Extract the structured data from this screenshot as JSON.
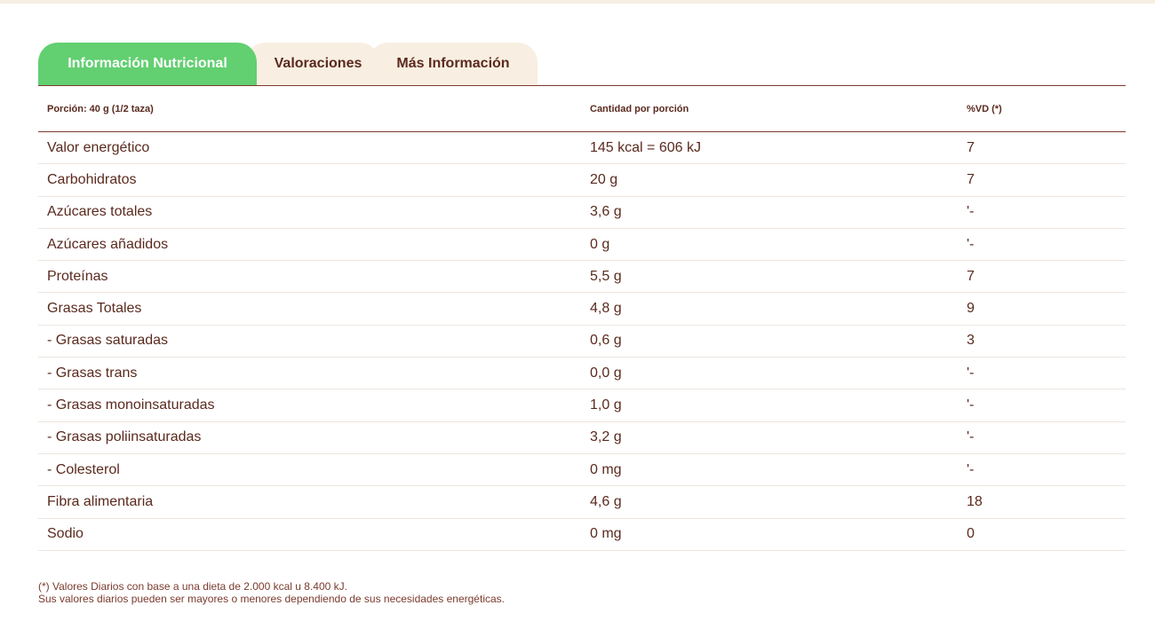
{
  "tabs": [
    {
      "label": "Información Nutricional",
      "active": true
    },
    {
      "label": "Valoraciones"
    },
    {
      "label": "Más Información"
    }
  ],
  "colors": {
    "accent": "#62cf71",
    "text": "#5a2a1e",
    "tab_bg": "#f8efe2"
  },
  "table": {
    "headers": [
      "Porción: 40 g (1/2 taza)",
      "Cantidad por porción",
      "%VD (*)"
    ],
    "rows": [
      [
        "Valor energético",
        "145 kcal = 606 kJ",
        "7"
      ],
      [
        "Carbohidratos",
        "20 g",
        "7"
      ],
      [
        "Azúcares totales",
        "3,6 g",
        "'-"
      ],
      [
        "Azúcares añadidos",
        "0 g",
        "'-"
      ],
      [
        "Proteínas",
        "5,5 g",
        "7"
      ],
      [
        "Grasas Totales",
        "4,8 g",
        "9"
      ],
      [
        "- Grasas saturadas",
        "0,6 g",
        "3"
      ],
      [
        "- Grasas trans",
        "0,0 g",
        "'-"
      ],
      [
        "- Grasas monoinsaturadas",
        "1,0 g",
        "'-"
      ],
      [
        "- Grasas poliinsaturadas",
        "3,2 g",
        "'-"
      ],
      [
        "- Colesterol",
        "0 mg",
        "'-"
      ],
      [
        "Fibra alimentaria",
        "4,6 g",
        "18"
      ],
      [
        "Sodio",
        "0 mg",
        "0"
      ]
    ]
  },
  "footnote": [
    "(*) Valores Diarios con base a una dieta de 2.000 kcal u 8.400 kJ.",
    "Sus valores diarios pueden ser mayores o menores dependiendo de sus necesidades energéticas."
  ]
}
